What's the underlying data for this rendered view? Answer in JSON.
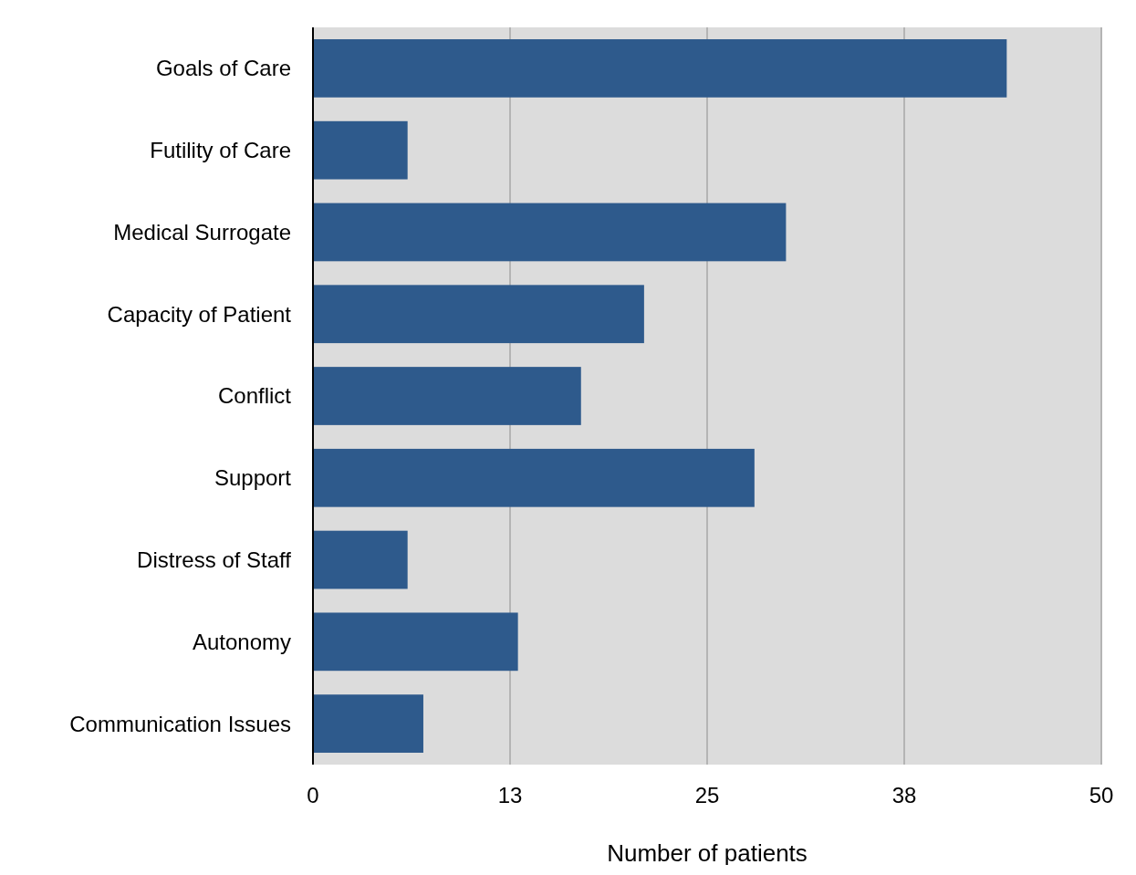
{
  "chart_data": {
    "type": "bar",
    "orientation": "horizontal",
    "xlabel": "Number of patients",
    "categories": [
      "Goals of Care",
      "Futility of Care",
      "Medical Surrogate",
      "Capacity of Patient",
      "Conflict",
      "Support",
      "Distress of Staff",
      "Autonomy",
      "Communication Issues"
    ],
    "values": [
      44,
      6,
      30,
      21,
      17,
      28,
      6,
      13,
      7
    ],
    "color": "#2e5a8c",
    "xlim": [
      0,
      50
    ],
    "xticks": [
      0,
      {
        "value": 12.5,
        "label": "13"
      },
      25,
      {
        "value": 37.5,
        "label": "38"
      },
      {
        "value": 50,
        "label": "50"
      }
    ],
    "grid": "x"
  }
}
